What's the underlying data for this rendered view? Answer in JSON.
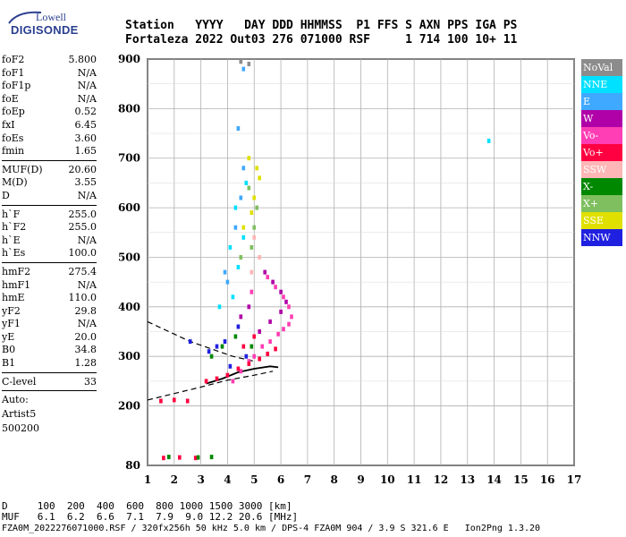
{
  "logo": {
    "brand": "Lowell",
    "product": "DIGISONDE"
  },
  "header": {
    "row1": [
      "Station",
      "YYYY",
      "DAY",
      "DDD",
      "HHMMSS",
      "P1",
      "FFS",
      "S",
      "AXN",
      "PPS",
      "IGA",
      "PS"
    ],
    "row2": [
      "Fortaleza",
      "2022",
      "Out03",
      "276",
      "071000",
      "RSF",
      "",
      "1",
      "714",
      "100",
      "10+",
      "11"
    ]
  },
  "params": {
    "group1": [
      {
        "label": "foF2",
        "value": "5.800"
      },
      {
        "label": "foF1",
        "value": "N/A"
      },
      {
        "label": "foF1p",
        "value": "N/A"
      },
      {
        "label": "foE",
        "value": "N/A"
      },
      {
        "label": "foEp",
        "value": "0.52"
      },
      {
        "label": "fxI",
        "value": "6.45"
      },
      {
        "label": "foEs",
        "value": "3.60"
      },
      {
        "label": "fmin",
        "value": "1.65"
      }
    ],
    "group2": [
      {
        "label": "MUF(D)",
        "value": "20.60"
      },
      {
        "label": "M(D)",
        "value": "3.55"
      },
      {
        "label": "D",
        "value": "N/A"
      }
    ],
    "group3": [
      {
        "label": "h`F",
        "value": "255.0"
      },
      {
        "label": "h`F2",
        "value": "255.0"
      },
      {
        "label": "h`E",
        "value": "N/A"
      },
      {
        "label": "h`Es",
        "value": "100.0"
      }
    ],
    "group4": [
      {
        "label": "hmF2",
        "value": "275.4"
      },
      {
        "label": "hmF1",
        "value": "N/A"
      },
      {
        "label": "hmE",
        "value": "110.0"
      },
      {
        "label": "yF2",
        "value": "29.8"
      },
      {
        "label": "yF1",
        "value": "N/A"
      },
      {
        "label": "yE",
        "value": "20.0"
      },
      {
        "label": "B0",
        "value": "34.8"
      },
      {
        "label": "B1",
        "value": "1.28"
      }
    ],
    "group5": [
      {
        "label": "C-level",
        "value": "33"
      }
    ],
    "auto_lines": [
      "Auto:",
      "Artist5",
      "500200"
    ]
  },
  "legend": [
    {
      "label": "NoVal",
      "color": "#8c8c8c"
    },
    {
      "label": "NNE",
      "color": "#00e0ff"
    },
    {
      "label": "E",
      "color": "#3fa9ff"
    },
    {
      "label": "W",
      "color": "#b000a8"
    },
    {
      "label": "Vo-",
      "color": "#ff3db4"
    },
    {
      "label": "Vo+",
      "color": "#ff0040"
    },
    {
      "label": "SSW",
      "color": "#ffb6b6"
    },
    {
      "label": "X-",
      "color": "#008800"
    },
    {
      "label": "X+",
      "color": "#7fbf5f"
    },
    {
      "label": "SSE",
      "color": "#e0e000"
    },
    {
      "label": "NNW",
      "color": "#2020e0"
    }
  ],
  "footer": {
    "d_row": "D     100  200  400  600  800 1000 1500 3000 [km]",
    "muf_row": "MUF   6.1  6.2  6.6  7.1  7.9  9.0 12.2 20.6 [MHz]",
    "file_row": "FZA0M_2022276071000.RSF / 320fx256h 50 kHz 5.0 km / DPS-4 FZA0M 904 / 3.9 S 321.6 E   Ion2Png 1.3.20"
  },
  "chart_data": {
    "type": "scatter",
    "title": "",
    "xlabel": "",
    "ylabel": "",
    "xlim": [
      1,
      17
    ],
    "ylim": [
      80,
      900
    ],
    "x_ticks": [
      1,
      2,
      3,
      4,
      5,
      6,
      7,
      8,
      9,
      10,
      11,
      12,
      13,
      14,
      15,
      16,
      17
    ],
    "y_ticks": [
      80,
      200,
      300,
      400,
      500,
      600,
      700,
      800,
      900
    ],
    "grid": true,
    "series": [
      {
        "name": "Vo-",
        "points": [
          [
            4.2,
            250
          ],
          [
            4.5,
            270
          ],
          [
            4.8,
            290
          ],
          [
            5.0,
            300
          ],
          [
            5.3,
            320
          ],
          [
            5.6,
            330
          ],
          [
            5.9,
            345
          ],
          [
            6.1,
            355
          ],
          [
            6.3,
            365
          ],
          [
            6.4,
            380
          ],
          [
            6.3,
            400
          ],
          [
            6.1,
            420
          ],
          [
            5.8,
            440
          ],
          [
            5.5,
            460
          ],
          [
            4.9,
            430
          ]
        ]
      },
      {
        "name": "Vo+",
        "points": [
          [
            3.2,
            250
          ],
          [
            3.6,
            255
          ],
          [
            4.0,
            262
          ],
          [
            4.4,
            275
          ],
          [
            4.8,
            285
          ],
          [
            5.2,
            295
          ],
          [
            5.5,
            305
          ],
          [
            5.8,
            315
          ],
          [
            1.5,
            210
          ],
          [
            2.0,
            212
          ],
          [
            2.5,
            210
          ],
          [
            1.6,
            95
          ],
          [
            2.2,
            96
          ],
          [
            2.8,
            95
          ],
          [
            4.6,
            320
          ],
          [
            5.0,
            340
          ]
        ]
      },
      {
        "name": "W",
        "points": [
          [
            5.2,
            350
          ],
          [
            5.6,
            370
          ],
          [
            6.0,
            390
          ],
          [
            6.2,
            410
          ],
          [
            6.0,
            430
          ],
          [
            5.7,
            450
          ],
          [
            5.4,
            470
          ],
          [
            4.8,
            400
          ],
          [
            4.5,
            380
          ]
        ]
      },
      {
        "name": "NNE",
        "points": [
          [
            4.2,
            420
          ],
          [
            4.4,
            480
          ],
          [
            4.6,
            540
          ],
          [
            4.3,
            600
          ],
          [
            4.7,
            650
          ],
          [
            13.8,
            735
          ],
          [
            3.7,
            400
          ],
          [
            4.1,
            520
          ]
        ]
      },
      {
        "name": "E",
        "points": [
          [
            4.0,
            450
          ],
          [
            4.3,
            560
          ],
          [
            4.5,
            620
          ],
          [
            4.6,
            680
          ],
          [
            3.9,
            470
          ],
          [
            4.4,
            760
          ],
          [
            4.6,
            880
          ]
        ]
      },
      {
        "name": "X-",
        "points": [
          [
            3.4,
            300
          ],
          [
            3.8,
            320
          ],
          [
            4.3,
            340
          ],
          [
            4.9,
            320
          ],
          [
            2.9,
            96
          ],
          [
            3.4,
            97
          ],
          [
            1.8,
            97
          ]
        ]
      },
      {
        "name": "X+",
        "points": [
          [
            4.5,
            500
          ],
          [
            4.9,
            520
          ],
          [
            5.1,
            600
          ],
          [
            4.8,
            640
          ],
          [
            5.0,
            560
          ]
        ]
      },
      {
        "name": "SSE",
        "points": [
          [
            4.6,
            560
          ],
          [
            4.9,
            590
          ],
          [
            5.0,
            620
          ],
          [
            5.2,
            660
          ],
          [
            4.8,
            700
          ],
          [
            5.1,
            680
          ]
        ]
      },
      {
        "name": "NNW",
        "points": [
          [
            3.6,
            320
          ],
          [
            3.9,
            330
          ],
          [
            4.4,
            360
          ],
          [
            3.3,
            310
          ],
          [
            4.7,
            300
          ],
          [
            2.6,
            330
          ],
          [
            4.1,
            280
          ]
        ]
      },
      {
        "name": "SSW",
        "points": [
          [
            4.9,
            470
          ],
          [
            5.2,
            500
          ],
          [
            5.0,
            540
          ]
        ]
      },
      {
        "name": "NoVal",
        "points": [
          [
            4.5,
            895
          ],
          [
            4.8,
            890
          ]
        ]
      }
    ],
    "curves": [
      {
        "name": "profile-lower",
        "points": [
          [
            1.0,
            212
          ],
          [
            2.0,
            225
          ],
          [
            3.0,
            238
          ],
          [
            4.0,
            252
          ],
          [
            5.0,
            262
          ],
          [
            5.7,
            270
          ]
        ]
      },
      {
        "name": "profile-upper",
        "points": [
          [
            1.0,
            370
          ],
          [
            1.8,
            350
          ],
          [
            2.6,
            330
          ],
          [
            3.4,
            315
          ],
          [
            4.2,
            300
          ],
          [
            5.0,
            290
          ]
        ]
      },
      {
        "name": "trace",
        "points": [
          [
            3.2,
            245
          ],
          [
            3.8,
            255
          ],
          [
            4.4,
            268
          ],
          [
            5.0,
            275
          ],
          [
            5.6,
            280
          ],
          [
            5.9,
            278
          ]
        ]
      }
    ]
  }
}
